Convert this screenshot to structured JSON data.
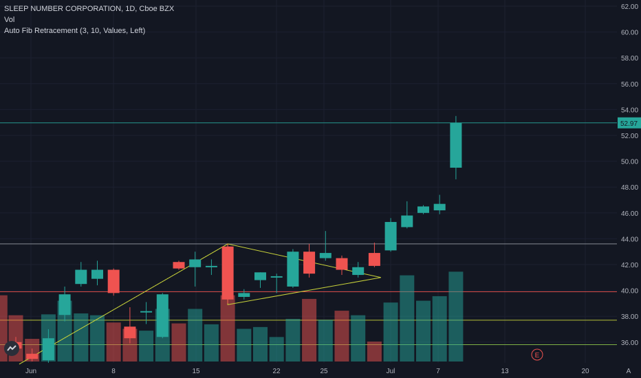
{
  "legend": {
    "title": "SLEEP NUMBER CORPORATION, 1D, Cboe BZX",
    "vol_label": "Vol",
    "fib_label": "Auto Fib Retracement (3, 10, Values, Left)"
  },
  "axis": {
    "y_ticks": [
      "62.00",
      "60.00",
      "58.00",
      "56.00",
      "54.00",
      "52.00",
      "50.00",
      "48.00",
      "46.00",
      "44.00",
      "42.00",
      "40.00",
      "38.00",
      "36.00"
    ],
    "x_ticks": [
      "Jun",
      "8",
      "15",
      "22",
      "25",
      "Jul",
      "7",
      "13",
      "20"
    ],
    "scale_mode_label": "A",
    "earnings_label": "E",
    "current_price_label": "52.97"
  },
  "colors": {
    "up": "#26a69a",
    "down": "#ef5350",
    "background": "#131722",
    "fib_line": "#c8d23a"
  },
  "chart_data": {
    "type": "candlestick",
    "y_range": [
      34.5,
      62.5
    ],
    "current_price": 52.97,
    "horizontal_levels": [
      {
        "price": 52.97,
        "color": "#26a69a"
      },
      {
        "price": 43.6,
        "color": "#9598a1"
      },
      {
        "price": 39.9,
        "color": "#ef5350"
      },
      {
        "price": 37.7,
        "color": "#c8d23a"
      },
      {
        "price": 35.8,
        "color": "#8bc34a"
      }
    ],
    "candles": [
      {
        "o": 36.0,
        "h": 36.4,
        "l": 35.2,
        "c": 35.5
      },
      {
        "o": 35.1,
        "h": 35.5,
        "l": 34.5,
        "c": 34.7
      },
      {
        "o": 34.6,
        "h": 37.0,
        "l": 34.4,
        "c": 36.3
      },
      {
        "o": 38.1,
        "h": 40.3,
        "l": 37.6,
        "c": 39.7
      },
      {
        "o": 40.5,
        "h": 42.2,
        "l": 40.3,
        "c": 41.6
      },
      {
        "o": 40.9,
        "h": 42.3,
        "l": 40.4,
        "c": 41.6
      },
      {
        "o": 41.6,
        "h": 41.7,
        "l": 39.6,
        "c": 39.8
      },
      {
        "o": 37.2,
        "h": 38.7,
        "l": 35.9,
        "c": 36.3
      },
      {
        "o": 38.3,
        "h": 39.1,
        "l": 37.4,
        "c": 38.4
      },
      {
        "o": 36.4,
        "h": 39.8,
        "l": 36.3,
        "c": 39.7
      },
      {
        "o": 42.2,
        "h": 42.3,
        "l": 41.6,
        "c": 41.7
      },
      {
        "o": 41.8,
        "h": 43.0,
        "l": 40.3,
        "c": 42.4
      },
      {
        "o": 41.9,
        "h": 42.4,
        "l": 41.2,
        "c": 41.9
      },
      {
        "o": 43.4,
        "h": 43.6,
        "l": 39.0,
        "c": 39.3
      },
      {
        "o": 39.5,
        "h": 40.1,
        "l": 39.3,
        "c": 39.8
      },
      {
        "o": 40.8,
        "h": 41.4,
        "l": 40.2,
        "c": 41.4
      },
      {
        "o": 41.0,
        "h": 41.3,
        "l": 39.8,
        "c": 41.1
      },
      {
        "o": 40.3,
        "h": 43.2,
        "l": 40.2,
        "c": 43.0
      },
      {
        "o": 43.0,
        "h": 43.6,
        "l": 41.0,
        "c": 41.3
      },
      {
        "o": 42.5,
        "h": 44.6,
        "l": 42.3,
        "c": 42.9
      },
      {
        "o": 42.5,
        "h": 42.7,
        "l": 41.2,
        "c": 41.6
      },
      {
        "o": 41.2,
        "h": 42.2,
        "l": 41.0,
        "c": 41.8
      },
      {
        "o": 42.9,
        "h": 43.7,
        "l": 41.8,
        "c": 41.9
      },
      {
        "o": 43.1,
        "h": 45.6,
        "l": 43.0,
        "c": 45.3
      },
      {
        "o": 44.9,
        "h": 46.9,
        "l": 44.8,
        "c": 45.8
      },
      {
        "o": 46.0,
        "h": 46.6,
        "l": 45.9,
        "c": 46.5
      },
      {
        "o": 46.2,
        "h": 47.4,
        "l": 45.9,
        "c": 46.7
      },
      {
        "o": 49.5,
        "h": 53.5,
        "l": 48.6,
        "c": 52.97
      }
    ],
    "volume": [
      0.51,
      0.25,
      0.52,
      0.67,
      0.53,
      0.51,
      0.43,
      0.36,
      0.34,
      0.58,
      0.42,
      0.58,
      0.41,
      0.73,
      0.36,
      0.38,
      0.27,
      0.47,
      0.69,
      0.46,
      0.56,
      0.51,
      0.22,
      0.65,
      0.95,
      0.67,
      0.72,
      0.99
    ],
    "volume_leading_bar": 0.73,
    "fib_pattern": {
      "points": [
        {
          "candle": -1,
          "price": 34.3
        },
        {
          "candle": 13,
          "price": 43.6
        },
        {
          "candle": 13,
          "price": 38.9
        },
        {
          "candle": 22.4,
          "price": 41.0
        }
      ]
    }
  }
}
